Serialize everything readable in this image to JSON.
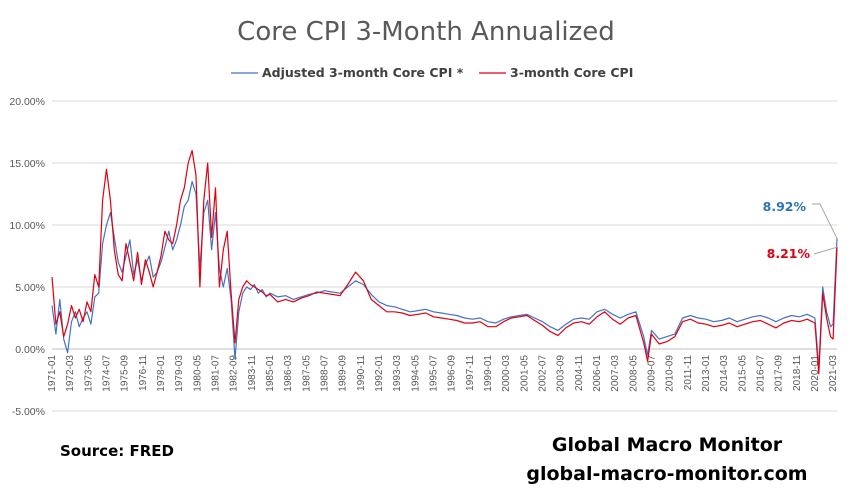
{
  "colors": {
    "adjusted": "#4472c4",
    "core": "#e00010",
    "grid": "#d9d9d9",
    "text": "#595959",
    "annot_adjusted": "#2e75b6",
    "annot_core": "#e00010"
  },
  "footer": {
    "source": "Source:  FRED",
    "brand": "Global Macro Monitor",
    "site": "global-macro-monitor.com"
  },
  "chart_data": {
    "type": "line",
    "title": "Core CPI 3-Month Annualized",
    "xlabel": "",
    "ylabel": "",
    "ylim": [
      -0.05,
      0.2
    ],
    "y_ticks": [
      "20.00%",
      "15.00%",
      "10.00%",
      "5.00%",
      "0.00%",
      "-5.00%"
    ],
    "y_tick_values": [
      0.2,
      0.15,
      0.1,
      0.05,
      0.0,
      -0.05
    ],
    "x_range": [
      "1971-01",
      "2021-06"
    ],
    "x_ticks": [
      "1971-01",
      "1972-03",
      "1973-05",
      "1974-07",
      "1975-09",
      "1976-11",
      "1978-01",
      "1979-03",
      "1980-05",
      "1981-07",
      "1982-09",
      "1983-11",
      "1985-01",
      "1986-03",
      "1987-05",
      "1988-07",
      "1989-09",
      "1990-11",
      "1992-01",
      "1993-03",
      "1994-05",
      "1995-07",
      "1996-09",
      "1997-11",
      "1999-01",
      "2000-03",
      "2001-05",
      "2002-07",
      "2003-09",
      "2004-11",
      "2006-01",
      "2007-03",
      "2008-05",
      "2009-07",
      "2010-09",
      "2011-11",
      "2013-01",
      "2014-03",
      "2015-05",
      "2016-07",
      "2017-09",
      "2018-11",
      "2020-01",
      "2021-03"
    ],
    "legend": "top",
    "grid": true,
    "annotations": [
      {
        "series": "Adjusted 3-month Core CPI *",
        "label": "8.92%",
        "x": "2021-06",
        "y": 0.0892
      },
      {
        "series": "3-month Core CPI",
        "label": "8.21%",
        "x": "2021-06",
        "y": 0.0821
      }
    ],
    "series": [
      {
        "name": "Adjusted 3-month Core CPI *",
        "points": [
          [
            "1971-01",
            0.035
          ],
          [
            "1971-04",
            0.012
          ],
          [
            "1971-07",
            0.04
          ],
          [
            "1971-10",
            0.008
          ],
          [
            "1972-01",
            -0.003
          ],
          [
            "1972-04",
            0.022
          ],
          [
            "1972-07",
            0.03
          ],
          [
            "1972-10",
            0.018
          ],
          [
            "1973-01",
            0.025
          ],
          [
            "1973-04",
            0.03
          ],
          [
            "1973-07",
            0.02
          ],
          [
            "1973-10",
            0.042
          ],
          [
            "1974-01",
            0.045
          ],
          [
            "1974-04",
            0.085
          ],
          [
            "1974-07",
            0.1
          ],
          [
            "1974-10",
            0.11
          ],
          [
            "1975-01",
            0.09
          ],
          [
            "1975-04",
            0.07
          ],
          [
            "1975-07",
            0.062
          ],
          [
            "1975-10",
            0.075
          ],
          [
            "1976-01",
            0.088
          ],
          [
            "1976-04",
            0.06
          ],
          [
            "1976-07",
            0.072
          ],
          [
            "1976-10",
            0.055
          ],
          [
            "1977-01",
            0.068
          ],
          [
            "1977-04",
            0.075
          ],
          [
            "1977-07",
            0.058
          ],
          [
            "1977-10",
            0.062
          ],
          [
            "1978-01",
            0.07
          ],
          [
            "1978-04",
            0.082
          ],
          [
            "1978-07",
            0.095
          ],
          [
            "1978-10",
            0.08
          ],
          [
            "1979-01",
            0.088
          ],
          [
            "1979-04",
            0.1
          ],
          [
            "1979-07",
            0.115
          ],
          [
            "1979-10",
            0.12
          ],
          [
            "1980-01",
            0.135
          ],
          [
            "1980-04",
            0.125
          ],
          [
            "1980-07",
            0.065
          ],
          [
            "1980-10",
            0.11
          ],
          [
            "1981-01",
            0.12
          ],
          [
            "1981-04",
            0.08
          ],
          [
            "1981-07",
            0.11
          ],
          [
            "1981-10",
            0.065
          ],
          [
            "1982-01",
            0.05
          ],
          [
            "1982-04",
            0.065
          ],
          [
            "1982-07",
            0.04
          ],
          [
            "1982-10",
            -0.008
          ],
          [
            "1983-01",
            0.03
          ],
          [
            "1983-04",
            0.045
          ],
          [
            "1983-07",
            0.05
          ],
          [
            "1983-10",
            0.048
          ],
          [
            "1984-01",
            0.052
          ],
          [
            "1984-04",
            0.045
          ],
          [
            "1984-07",
            0.048
          ],
          [
            "1984-10",
            0.042
          ],
          [
            "1985-01",
            0.045
          ],
          [
            "1985-07",
            0.042
          ],
          [
            "1986-01",
            0.043
          ],
          [
            "1986-07",
            0.04
          ],
          [
            "1987-01",
            0.042
          ],
          [
            "1987-07",
            0.044
          ],
          [
            "1988-01",
            0.045
          ],
          [
            "1988-07",
            0.047
          ],
          [
            "1989-01",
            0.046
          ],
          [
            "1989-07",
            0.045
          ],
          [
            "1990-01",
            0.05
          ],
          [
            "1990-07",
            0.055
          ],
          [
            "1991-01",
            0.052
          ],
          [
            "1991-07",
            0.044
          ],
          [
            "1992-01",
            0.038
          ],
          [
            "1992-07",
            0.035
          ],
          [
            "1993-01",
            0.034
          ],
          [
            "1993-07",
            0.032
          ],
          [
            "1994-01",
            0.03
          ],
          [
            "1994-07",
            0.031
          ],
          [
            "1995-01",
            0.032
          ],
          [
            "1995-07",
            0.03
          ],
          [
            "1996-01",
            0.029
          ],
          [
            "1996-07",
            0.028
          ],
          [
            "1997-01",
            0.027
          ],
          [
            "1997-07",
            0.025
          ],
          [
            "1998-01",
            0.024
          ],
          [
            "1998-07",
            0.025
          ],
          [
            "1999-01",
            0.022
          ],
          [
            "1999-07",
            0.021
          ],
          [
            "2000-01",
            0.024
          ],
          [
            "2000-07",
            0.026
          ],
          [
            "2001-01",
            0.027
          ],
          [
            "2001-07",
            0.028
          ],
          [
            "2002-01",
            0.025
          ],
          [
            "2002-07",
            0.022
          ],
          [
            "2003-01",
            0.018
          ],
          [
            "2003-07",
            0.015
          ],
          [
            "2004-01",
            0.02
          ],
          [
            "2004-07",
            0.024
          ],
          [
            "2005-01",
            0.025
          ],
          [
            "2005-07",
            0.024
          ],
          [
            "2006-01",
            0.03
          ],
          [
            "2006-07",
            0.032
          ],
          [
            "2007-01",
            0.028
          ],
          [
            "2007-07",
            0.025
          ],
          [
            "2008-01",
            0.028
          ],
          [
            "2008-07",
            0.03
          ],
          [
            "2009-01",
            0.01
          ],
          [
            "2009-04",
            -0.005
          ],
          [
            "2009-07",
            0.015
          ],
          [
            "2010-01",
            0.008
          ],
          [
            "2010-07",
            0.01
          ],
          [
            "2011-01",
            0.012
          ],
          [
            "2011-07",
            0.025
          ],
          [
            "2012-01",
            0.027
          ],
          [
            "2012-07",
            0.025
          ],
          [
            "2013-01",
            0.024
          ],
          [
            "2013-07",
            0.022
          ],
          [
            "2014-01",
            0.023
          ],
          [
            "2014-07",
            0.025
          ],
          [
            "2015-01",
            0.022
          ],
          [
            "2015-07",
            0.024
          ],
          [
            "2016-01",
            0.026
          ],
          [
            "2016-07",
            0.027
          ],
          [
            "2017-01",
            0.025
          ],
          [
            "2017-07",
            0.022
          ],
          [
            "2018-01",
            0.025
          ],
          [
            "2018-07",
            0.027
          ],
          [
            "2019-01",
            0.026
          ],
          [
            "2019-07",
            0.028
          ],
          [
            "2020-01",
            0.025
          ],
          [
            "2020-04",
            -0.015
          ],
          [
            "2020-07",
            0.05
          ],
          [
            "2020-10",
            0.03
          ],
          [
            "2021-01",
            0.018
          ],
          [
            "2021-03",
            0.02
          ],
          [
            "2021-06",
            0.0892
          ]
        ]
      },
      {
        "name": "3-month Core CPI",
        "points": [
          [
            "1971-01",
            0.058
          ],
          [
            "1971-04",
            0.02
          ],
          [
            "1971-07",
            0.03
          ],
          [
            "1971-10",
            0.01
          ],
          [
            "1972-01",
            0.02
          ],
          [
            "1972-04",
            0.035
          ],
          [
            "1972-07",
            0.025
          ],
          [
            "1972-10",
            0.032
          ],
          [
            "1973-01",
            0.022
          ],
          [
            "1973-04",
            0.038
          ],
          [
            "1973-07",
            0.03
          ],
          [
            "1973-10",
            0.06
          ],
          [
            "1974-01",
            0.05
          ],
          [
            "1974-04",
            0.12
          ],
          [
            "1974-07",
            0.145
          ],
          [
            "1974-10",
            0.12
          ],
          [
            "1975-01",
            0.08
          ],
          [
            "1975-04",
            0.06
          ],
          [
            "1975-07",
            0.055
          ],
          [
            "1975-10",
            0.085
          ],
          [
            "1976-01",
            0.07
          ],
          [
            "1976-04",
            0.055
          ],
          [
            "1976-07",
            0.078
          ],
          [
            "1976-10",
            0.052
          ],
          [
            "1977-01",
            0.072
          ],
          [
            "1977-04",
            0.062
          ],
          [
            "1977-07",
            0.05
          ],
          [
            "1977-10",
            0.062
          ],
          [
            "1978-01",
            0.075
          ],
          [
            "1978-04",
            0.095
          ],
          [
            "1978-07",
            0.088
          ],
          [
            "1978-10",
            0.085
          ],
          [
            "1979-01",
            0.1
          ],
          [
            "1979-04",
            0.12
          ],
          [
            "1979-07",
            0.13
          ],
          [
            "1979-10",
            0.15
          ],
          [
            "1980-01",
            0.16
          ],
          [
            "1980-04",
            0.14
          ],
          [
            "1980-07",
            0.05
          ],
          [
            "1980-10",
            0.12
          ],
          [
            "1981-01",
            0.15
          ],
          [
            "1981-04",
            0.09
          ],
          [
            "1981-07",
            0.13
          ],
          [
            "1981-10",
            0.05
          ],
          [
            "1982-01",
            0.08
          ],
          [
            "1982-04",
            0.095
          ],
          [
            "1982-07",
            0.045
          ],
          [
            "1982-10",
            0.005
          ],
          [
            "1983-01",
            0.04
          ],
          [
            "1983-04",
            0.05
          ],
          [
            "1983-07",
            0.055
          ],
          [
            "1983-10",
            0.052
          ],
          [
            "1984-01",
            0.05
          ],
          [
            "1984-04",
            0.048
          ],
          [
            "1984-07",
            0.046
          ],
          [
            "1984-10",
            0.043
          ],
          [
            "1985-01",
            0.044
          ],
          [
            "1985-07",
            0.038
          ],
          [
            "1986-01",
            0.04
          ],
          [
            "1986-07",
            0.038
          ],
          [
            "1987-01",
            0.041
          ],
          [
            "1987-07",
            0.043
          ],
          [
            "1988-01",
            0.046
          ],
          [
            "1988-07",
            0.045
          ],
          [
            "1989-01",
            0.044
          ],
          [
            "1989-07",
            0.043
          ],
          [
            "1990-01",
            0.052
          ],
          [
            "1990-07",
            0.062
          ],
          [
            "1991-01",
            0.055
          ],
          [
            "1991-07",
            0.04
          ],
          [
            "1992-01",
            0.035
          ],
          [
            "1992-07",
            0.03
          ],
          [
            "1993-01",
            0.03
          ],
          [
            "1993-07",
            0.029
          ],
          [
            "1994-01",
            0.027
          ],
          [
            "1994-07",
            0.028
          ],
          [
            "1995-01",
            0.029
          ],
          [
            "1995-07",
            0.026
          ],
          [
            "1996-01",
            0.025
          ],
          [
            "1996-07",
            0.024
          ],
          [
            "1997-01",
            0.023
          ],
          [
            "1997-07",
            0.021
          ],
          [
            "1998-01",
            0.021
          ],
          [
            "1998-07",
            0.022
          ],
          [
            "1999-01",
            0.018
          ],
          [
            "1999-07",
            0.018
          ],
          [
            "2000-01",
            0.022
          ],
          [
            "2000-07",
            0.025
          ],
          [
            "2001-01",
            0.026
          ],
          [
            "2001-07",
            0.027
          ],
          [
            "2002-01",
            0.023
          ],
          [
            "2002-07",
            0.019
          ],
          [
            "2003-01",
            0.014
          ],
          [
            "2003-07",
            0.011
          ],
          [
            "2004-01",
            0.017
          ],
          [
            "2004-07",
            0.021
          ],
          [
            "2005-01",
            0.022
          ],
          [
            "2005-07",
            0.02
          ],
          [
            "2006-01",
            0.026
          ],
          [
            "2006-07",
            0.03
          ],
          [
            "2007-01",
            0.024
          ],
          [
            "2007-07",
            0.02
          ],
          [
            "2008-01",
            0.025
          ],
          [
            "2008-07",
            0.027
          ],
          [
            "2009-01",
            0.005
          ],
          [
            "2009-04",
            -0.01
          ],
          [
            "2009-07",
            0.012
          ],
          [
            "2010-01",
            0.004
          ],
          [
            "2010-07",
            0.006
          ],
          [
            "2011-01",
            0.01
          ],
          [
            "2011-07",
            0.022
          ],
          [
            "2012-01",
            0.024
          ],
          [
            "2012-07",
            0.021
          ],
          [
            "2013-01",
            0.02
          ],
          [
            "2013-07",
            0.018
          ],
          [
            "2014-01",
            0.019
          ],
          [
            "2014-07",
            0.021
          ],
          [
            "2015-01",
            0.018
          ],
          [
            "2015-07",
            0.02
          ],
          [
            "2016-01",
            0.022
          ],
          [
            "2016-07",
            0.023
          ],
          [
            "2017-01",
            0.02
          ],
          [
            "2017-07",
            0.017
          ],
          [
            "2018-01",
            0.021
          ],
          [
            "2018-07",
            0.023
          ],
          [
            "2019-01",
            0.022
          ],
          [
            "2019-07",
            0.024
          ],
          [
            "2020-01",
            0.021
          ],
          [
            "2020-04",
            -0.02
          ],
          [
            "2020-07",
            0.045
          ],
          [
            "2020-10",
            0.025
          ],
          [
            "2021-01",
            0.01
          ],
          [
            "2021-03",
            0.008
          ],
          [
            "2021-06",
            0.0821
          ]
        ]
      }
    ]
  }
}
